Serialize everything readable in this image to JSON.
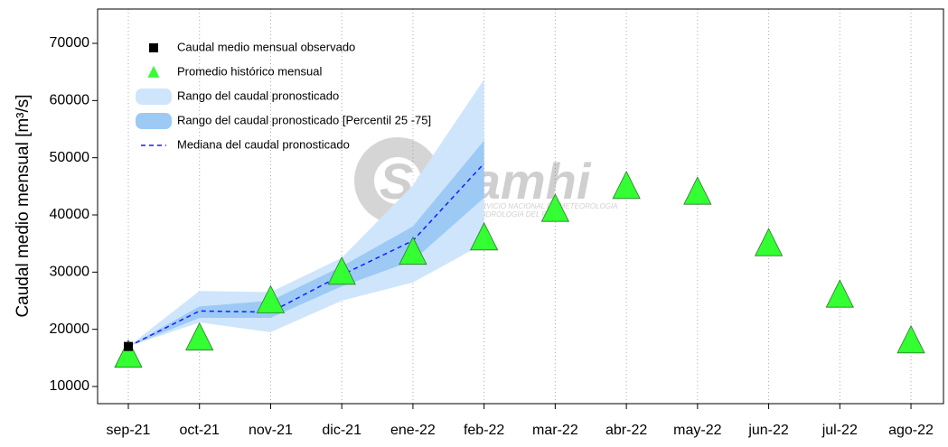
{
  "chart_data": {
    "type": "line",
    "ylabel": "Caudal medio mensual  [m³/s]",
    "watermark": {
      "title": "Senamhi",
      "line1": "SERVICIO NACIONAL DE METEOROLOGÍA",
      "line2": "E HIDROLOGÍA DEL PERÚ"
    },
    "categories": [
      "sep-21",
      "oct-21",
      "nov-21",
      "dic-21",
      "ene-22",
      "feb-22",
      "mar-22",
      "abr-22",
      "may-22",
      "jun-22",
      "jul-22",
      "ago-22"
    ],
    "ylim": [
      7000,
      76000
    ],
    "yticks": [
      10000,
      20000,
      30000,
      40000,
      50000,
      60000,
      70000
    ],
    "grid": true,
    "legend": "upper left",
    "series": [
      {
        "name": "Caudal medio mensual observado",
        "type": "square",
        "color": "#000000",
        "values": [
          17000,
          null,
          null,
          null,
          null,
          null,
          null,
          null,
          null,
          null,
          null,
          null
        ]
      },
      {
        "name": "Promedio histórico mensual",
        "type": "triangle",
        "color": "#33ff33",
        "values": [
          15500,
          18500,
          25000,
          30000,
          33500,
          36000,
          41000,
          45000,
          44000,
          35000,
          26000,
          18000
        ]
      },
      {
        "name": "Rango del caudal pronosticado",
        "type": "band",
        "color": "#cfe5fb",
        "low": [
          17000,
          21200,
          19500,
          25000,
          28200,
          35000,
          null,
          null,
          null,
          null,
          null,
          null
        ],
        "high": [
          17000,
          26700,
          26500,
          32500,
          45200,
          63700,
          null,
          null,
          null,
          null,
          null,
          null
        ]
      },
      {
        "name": "Rango del caudal pronosticado [Percentil 25 -75]",
        "type": "band",
        "color": "#9ccaf5",
        "low": [
          17000,
          22000,
          22000,
          27500,
          32000,
          43000,
          null,
          null,
          null,
          null,
          null,
          null
        ],
        "high": [
          17000,
          24000,
          25000,
          31000,
          38000,
          53000,
          null,
          null,
          null,
          null,
          null,
          null
        ]
      },
      {
        "name": "Mediana del caudal pronosticado",
        "type": "dashed",
        "color": "#1a1aff",
        "values": [
          17000,
          23200,
          23000,
          29500,
          35500,
          49000,
          null,
          null,
          null,
          null,
          null,
          null
        ]
      }
    ]
  }
}
